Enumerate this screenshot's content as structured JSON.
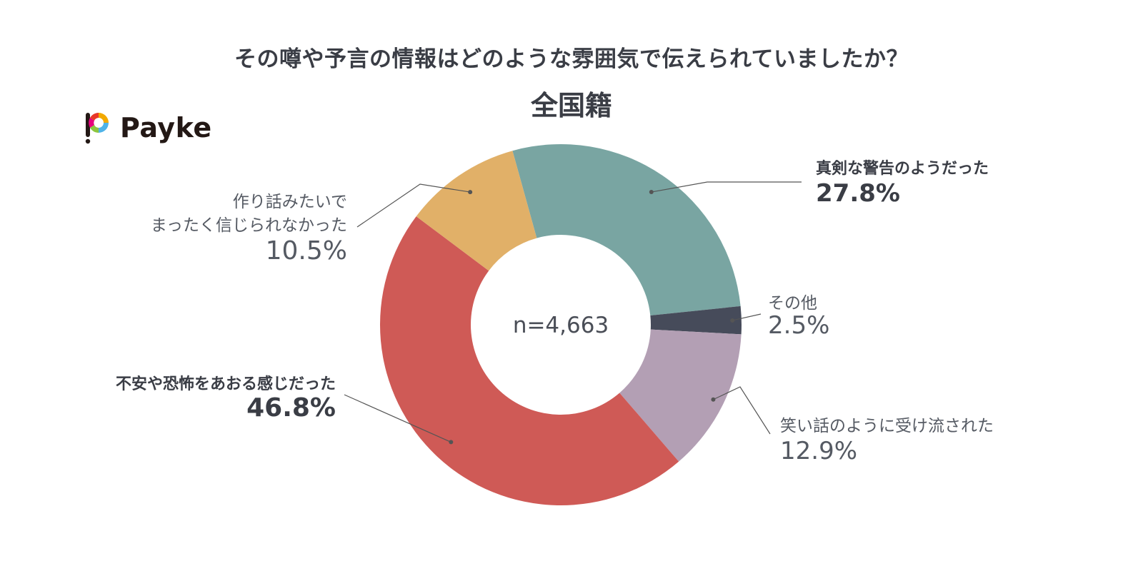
{
  "header": {
    "title": "その噂や予言の情報はどのような雰囲気で伝えられていましたか？",
    "subtitle": "全国籍"
  },
  "logo": {
    "text": "Payke"
  },
  "colors": {
    "text": "#3a3d45",
    "leader": "#555555"
  },
  "chart_data": {
    "type": "pie",
    "style": "donut",
    "title": "その噂や予言の情報はどのような雰囲気で伝えられていましたか？",
    "subtitle": "全国籍",
    "center_label": "n=4,663",
    "unit": "%",
    "slices": [
      {
        "label_lines": [
          "真剣な警告のようだった"
        ],
        "value": 27.8,
        "value_label": "27.8%",
        "color": "#79a5a2",
        "emphasis": true,
        "label_side": "right"
      },
      {
        "label_lines": [
          "その他"
        ],
        "value": 2.5,
        "value_label": "2.5%",
        "color": "#464b5a",
        "emphasis": false,
        "label_side": "right"
      },
      {
        "label_lines": [
          "笑い話のように受け流された"
        ],
        "value": 12.9,
        "value_label": "12.9%",
        "color": "#b39fb4",
        "emphasis": false,
        "label_side": "right"
      },
      {
        "label_lines": [
          "不安や恐怖をあおる感じだった"
        ],
        "value": 46.8,
        "value_label": "46.8%",
        "color": "#cf5a56",
        "emphasis": true,
        "label_side": "left"
      },
      {
        "label_lines": [
          "作り話みたいで",
          "まったく信じられなかった"
        ],
        "value": 10.5,
        "value_label": "10.5%",
        "color": "#e1b068",
        "emphasis": false,
        "label_side": "left"
      }
    ]
  }
}
